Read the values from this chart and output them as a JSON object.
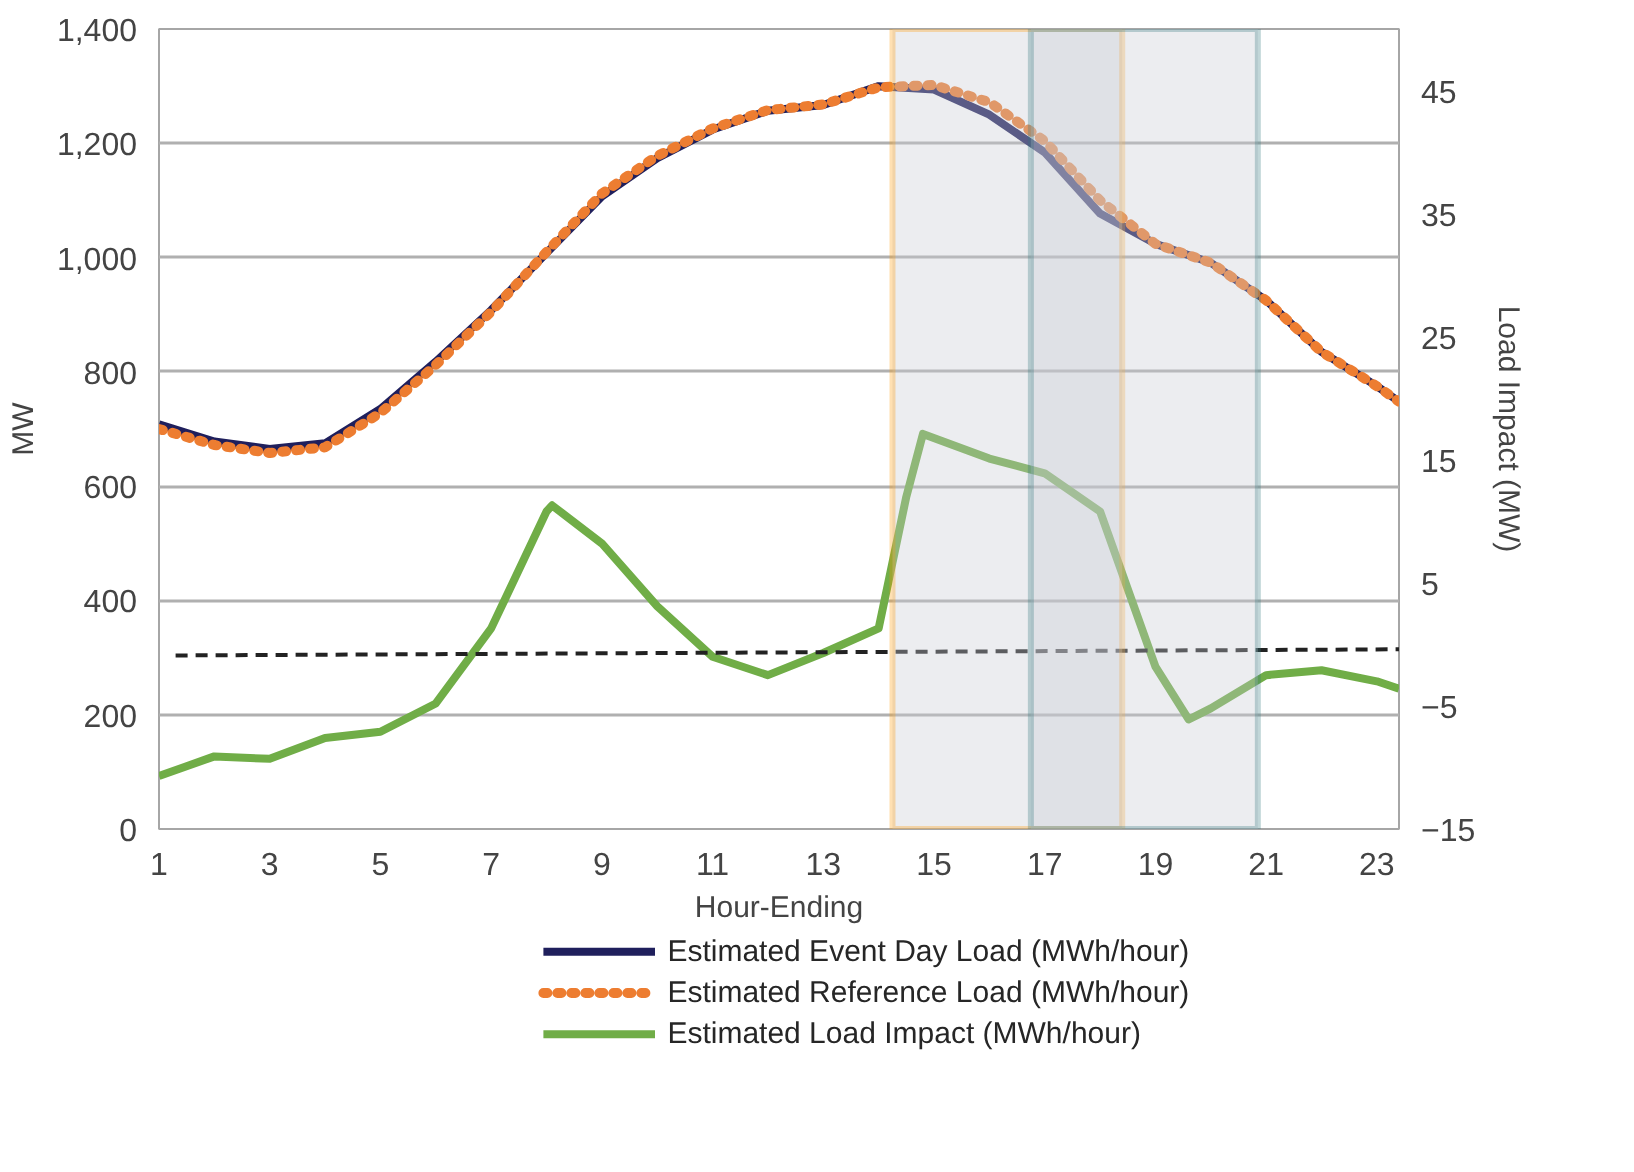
{
  "chart_data": {
    "type": "line",
    "xlabel": "Hour-Ending",
    "ylabel": "MW",
    "y2label": "Load Impact (MW)",
    "x": [
      1,
      2,
      3,
      4,
      5,
      6,
      7,
      8,
      9,
      10,
      11,
      12,
      13,
      14,
      15,
      16,
      17,
      18,
      19,
      20,
      21,
      22,
      23,
      23.4
    ],
    "series": [
      {
        "name": "Estimated Event Day Load (MWh/hour)",
        "color": "#1f1f5c",
        "line_style": "solid",
        "values": [
          708,
          678,
          665,
          675,
          735,
          818,
          908,
          1008,
          1107,
          1174,
          1224,
          1257,
          1267,
          1300,
          1294,
          1250,
          1184,
          1077,
          1024,
          991,
          925,
          835,
          775,
          748
        ]
      },
      {
        "name": "Estimated Reference Load (MWh/hour)",
        "color": "#ed7d31",
        "line_style": "dotted",
        "values": [
          700,
          672,
          658,
          668,
          728,
          812,
          905,
          1010,
          1112,
          1178,
          1226,
          1258,
          1268,
          1298,
          1302,
          1272,
          1204,
          1100,
          1024,
          991,
          925,
          835,
          775,
          748
        ]
      },
      {
        "name": "Estimated Load Impact (MWh/hour)",
        "color": "#70ad47",
        "line_style": "solid",
        "axis": "y2",
        "x": [
          1,
          2,
          3,
          4,
          5,
          6,
          7,
          8,
          8.1,
          9,
          10,
          11,
          12,
          13,
          14,
          14.5,
          14.8,
          16,
          17,
          18,
          19,
          19.6,
          20,
          21,
          22,
          23,
          23.4
        ],
        "values": [
          -10.7,
          -9.1,
          -9.3,
          -7.6,
          -7.1,
          -4.8,
          1.3,
          10.8,
          11.3,
          8.2,
          3.1,
          -1.0,
          -2.5,
          -0.7,
          1.3,
          12,
          17.1,
          15.1,
          13.9,
          10.8,
          -1.8,
          -6.1,
          -5.2,
          -2.5,
          -2.1,
          -3.0,
          -3.6
        ]
      },
      {
        "color": "#222222",
        "line_style": "dashed",
        "axis": "y2",
        "x": [
          1.3,
          23.4
        ],
        "values": [
          -0.9,
          -0.4
        ]
      }
    ],
    "xlim": [
      1,
      23.4
    ],
    "xticks": [
      1,
      3,
      5,
      7,
      9,
      11,
      13,
      15,
      17,
      19,
      21,
      23
    ],
    "ylim": [
      0,
      1400
    ],
    "yticks": [
      {
        "value": 0,
        "label": "0"
      },
      {
        "value": 200,
        "label": "200"
      },
      {
        "value": 400,
        "label": "400"
      },
      {
        "value": 600,
        "label": "600"
      },
      {
        "value": 800,
        "label": "800"
      },
      {
        "value": 1000,
        "label": "1,000"
      },
      {
        "value": 1200,
        "label": "1,200"
      },
      {
        "value": 1400,
        "label": "1,400"
      }
    ],
    "y2lim": [
      -15,
      50
    ],
    "y2ticks": [
      -15,
      -5,
      5,
      15,
      25,
      35,
      45
    ],
    "bands": [
      {
        "axis": "x",
        "from": 14.25,
        "to": 18.4,
        "color": "#ff9900"
      },
      {
        "axis": "x",
        "from": 16.75,
        "to": 20.85,
        "color": "#31777e"
      }
    ],
    "grid": "y",
    "legend": "bottom"
  }
}
